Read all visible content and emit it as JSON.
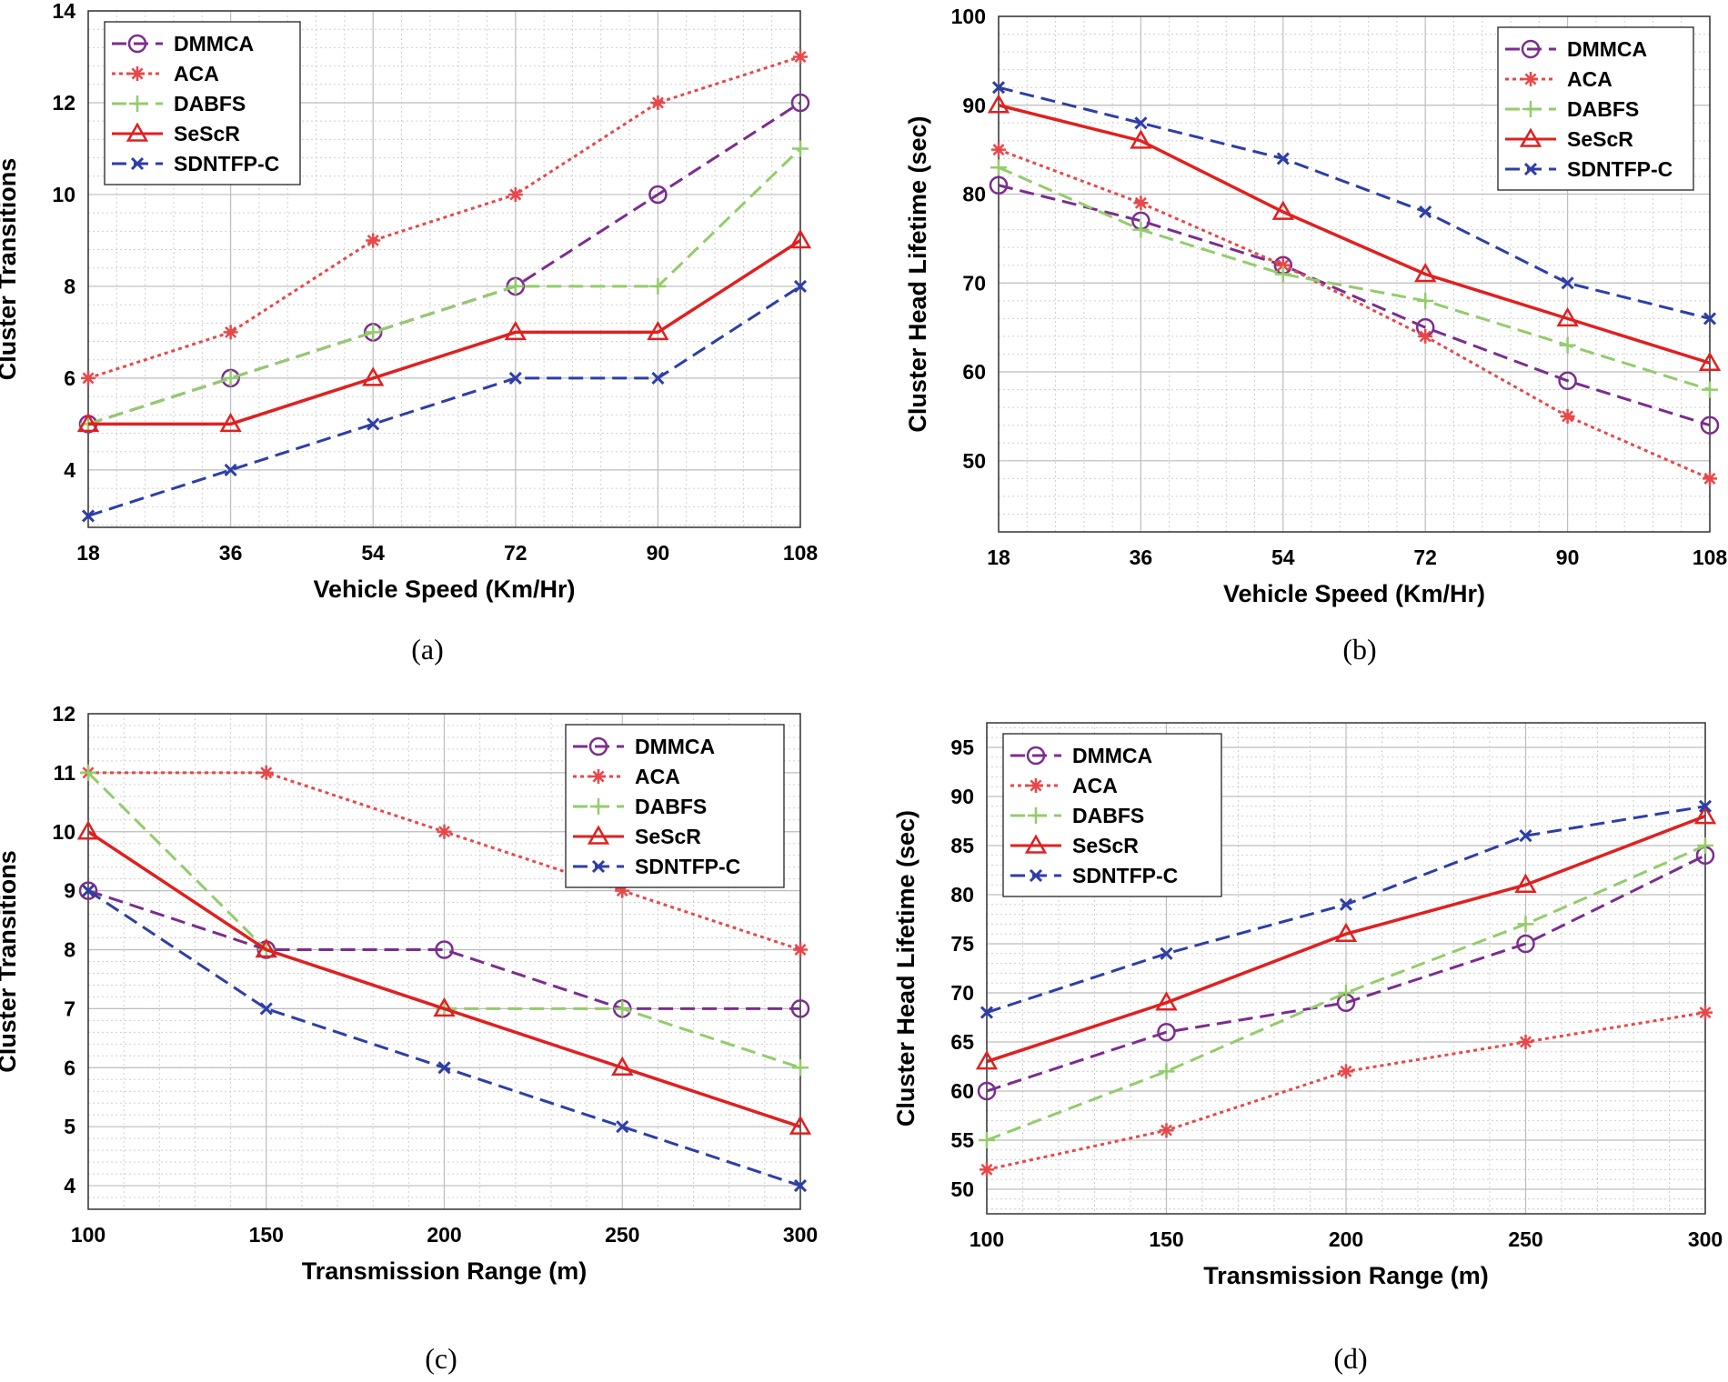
{
  "styles": {
    "DMMCA": {
      "color": "#7b2d8e",
      "dash": "16,8",
      "marker": "circle"
    },
    "ACA": {
      "color": "#e8474a",
      "dash": "4,4",
      "marker": "asterisk"
    },
    "DABFS": {
      "color": "#93cc6b",
      "dash": "16,8",
      "marker": "plus"
    },
    "SeScR": {
      "color": "#e02020",
      "dash": "",
      "marker": "triangle"
    },
    "SDNTFP-C": {
      "color": "#2d3ea8",
      "dash": "16,8",
      "marker": "x"
    }
  },
  "chart_data": [
    {
      "type": "line",
      "caption": "(a)",
      "xlabel": "Vehicle Speed (Km/Hr)",
      "ylabel": "Cluster Transitions",
      "x": [
        18,
        36,
        54,
        72,
        90,
        108
      ],
      "xlim": [
        18,
        108
      ],
      "ylim": [
        2.75,
        14
      ],
      "yticks": [
        4,
        6,
        8,
        10,
        12,
        14
      ],
      "legend": "top-left",
      "grid": true,
      "series": [
        {
          "name": "DMMCA",
          "values": [
            5,
            6,
            7,
            8,
            10,
            12
          ]
        },
        {
          "name": "ACA",
          "values": [
            6,
            7,
            9,
            10,
            12,
            13
          ]
        },
        {
          "name": "DABFS",
          "values": [
            5,
            6,
            7,
            8,
            8,
            11
          ]
        },
        {
          "name": "SeScR",
          "values": [
            5,
            5,
            6,
            7,
            7,
            9
          ]
        },
        {
          "name": "SDNTFP-C",
          "values": [
            3,
            4,
            5,
            6,
            6,
            8
          ]
        }
      ]
    },
    {
      "type": "line",
      "caption": "(b)",
      "xlabel": "Vehicle Speed (Km/Hr)",
      "ylabel": "Cluster Head Lifetime (sec)",
      "x": [
        18,
        36,
        54,
        72,
        90,
        108
      ],
      "xlim": [
        18,
        108
      ],
      "ylim": [
        42,
        100
      ],
      "yticks": [
        50,
        60,
        70,
        80,
        90,
        100
      ],
      "legend": "top-right",
      "grid": true,
      "series": [
        {
          "name": "DMMCA",
          "values": [
            81,
            77,
            72,
            65,
            59,
            54
          ]
        },
        {
          "name": "ACA",
          "values": [
            85,
            79,
            72,
            64,
            55,
            48
          ]
        },
        {
          "name": "DABFS",
          "values": [
            83,
            76,
            71,
            68,
            63,
            58
          ]
        },
        {
          "name": "SeScR",
          "values": [
            90,
            86,
            78,
            71,
            66,
            61
          ]
        },
        {
          "name": "SDNTFP-C",
          "values": [
            92,
            88,
            84,
            78,
            70,
            66
          ]
        }
      ]
    },
    {
      "type": "line",
      "caption": "(c)",
      "xlabel": "Transmission Range (m)",
      "ylabel": "Cluster Transitions",
      "x": [
        100,
        150,
        200,
        250,
        300
      ],
      "xlim": [
        100,
        300
      ],
      "ylim": [
        3.6,
        12
      ],
      "yticks": [
        4,
        5,
        6,
        7,
        8,
        9,
        10,
        11,
        12
      ],
      "legend": "top-right",
      "grid": true,
      "series": [
        {
          "name": "DMMCA",
          "values": [
            9,
            8,
            8,
            7,
            7
          ]
        },
        {
          "name": "ACA",
          "values": [
            11,
            11,
            10,
            9,
            8
          ]
        },
        {
          "name": "DABFS",
          "values": [
            11,
            8,
            7,
            7,
            6
          ]
        },
        {
          "name": "SeScR",
          "values": [
            10,
            8,
            7,
            6,
            5
          ]
        },
        {
          "name": "SDNTFP-C",
          "values": [
            9,
            7,
            6,
            5,
            4
          ]
        }
      ]
    },
    {
      "type": "line",
      "caption": "(d)",
      "xlabel": "Transmission Range (m)",
      "ylabel": "Cluster Head Lifetime (sec)",
      "x": [
        100,
        150,
        200,
        250,
        300
      ],
      "xlim": [
        100,
        300
      ],
      "ylim": [
        47.5,
        97.5
      ],
      "yticks": [
        50,
        55,
        60,
        65,
        70,
        75,
        80,
        85,
        90,
        95
      ],
      "legend": "top-left",
      "grid": true,
      "series": [
        {
          "name": "DMMCA",
          "values": [
            60,
            66,
            69,
            75,
            84
          ]
        },
        {
          "name": "ACA",
          "values": [
            52,
            56,
            62,
            65,
            68
          ]
        },
        {
          "name": "DABFS",
          "values": [
            55,
            62,
            70,
            77,
            85
          ]
        },
        {
          "name": "SeScR",
          "values": [
            63,
            69,
            76,
            81,
            88
          ]
        },
        {
          "name": "SDNTFP-C",
          "values": [
            68,
            74,
            79,
            86,
            89
          ]
        }
      ]
    }
  ]
}
